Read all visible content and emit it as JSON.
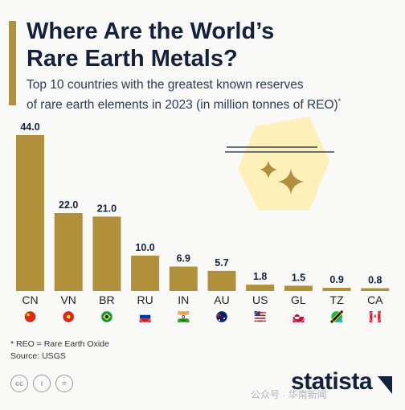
{
  "header": {
    "title_line1": "Where Are the World’s",
    "title_line2": "Rare Earth Metals?",
    "subtitle_line1": "Top 10 countries with the greatest known reserves",
    "subtitle_line2": "of rare earth elements in 2023 (in million tonnes of REO)",
    "subtitle_mark": "*"
  },
  "chart_data": {
    "type": "bar",
    "title": "",
    "xlabel": "",
    "ylabel": "",
    "categories": [
      "CN",
      "VN",
      "BR",
      "RU",
      "IN",
      "AU",
      "US",
      "GL",
      "TZ",
      "CA"
    ],
    "values": [
      44.0,
      22.0,
      21.0,
      10.0,
      6.9,
      5.7,
      1.8,
      1.5,
      0.9,
      0.8
    ],
    "value_labels": [
      "44.0",
      "22.0",
      "21.0",
      "10.0",
      "6.9",
      "5.7",
      "1.8",
      "1.5",
      "0.9",
      "0.8"
    ],
    "ylim": [
      0,
      44
    ],
    "grid": false,
    "legend": "none",
    "bar_color": "#b1903c"
  },
  "colors": {
    "accent": "#b1903c",
    "title": "#14213d",
    "decoration": "#fdf0b8"
  },
  "footer": {
    "note": "* REO = Rare Earth Oxide",
    "source": "Source: USGS",
    "brand": "statista",
    "license_icons": [
      "cc-icon",
      "attribution-icon",
      "no-derivatives-icon"
    ],
    "license_glyphs": [
      "cc",
      "i",
      "="
    ],
    "watermark": "公众号 · 华南新闻"
  }
}
